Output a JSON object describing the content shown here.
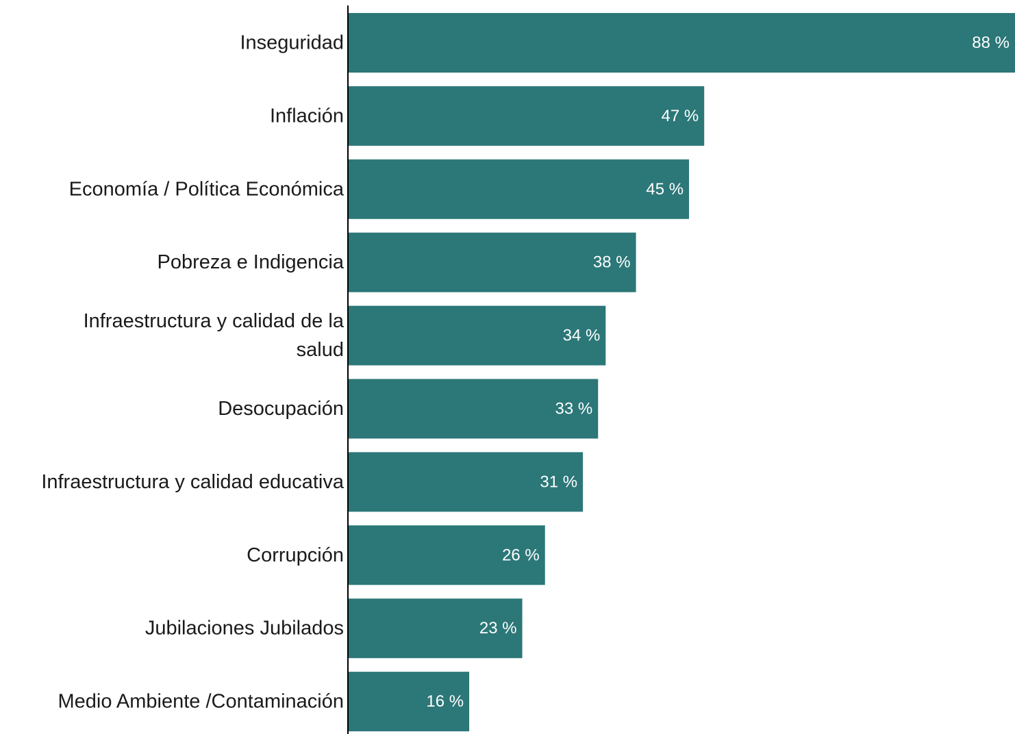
{
  "colors": {
    "bar": "#2c7778",
    "axis": "#000000",
    "label": "#1a1a1a",
    "value_label": "#ffffff"
  },
  "chart_data": {
    "type": "bar",
    "orientation": "horizontal",
    "title": "",
    "xlabel": "",
    "ylabel": "",
    "grid": false,
    "legend": "none",
    "xlim": [
      0,
      88
    ],
    "categories": [
      "Inseguridad",
      "Inflación",
      "Economía / Política Económica",
      "Pobreza e Indigencia",
      "Infraestructura y calidad de la salud",
      "Desocupación",
      "Infraestructura y calidad educativa",
      "Corrupción",
      "Jubilaciones Jubilados",
      "Medio Ambiente /Contaminación"
    ],
    "category_label_lines": [
      [
        "Inseguridad"
      ],
      [
        "Inflación"
      ],
      [
        "Economía / Política Económica"
      ],
      [
        "Pobreza e Indigencia"
      ],
      [
        "Infraestructura y calidad de la",
        "salud"
      ],
      [
        "Desocupación"
      ],
      [
        "Infraestructura y calidad educativa"
      ],
      [
        "Corrupción"
      ],
      [
        "Jubilaciones Jubilados"
      ],
      [
        "Medio Ambiente /Contaminación"
      ]
    ],
    "values": [
      88,
      47,
      45,
      38,
      34,
      33,
      31,
      26,
      23,
      16
    ],
    "value_labels": [
      "88 %",
      "47 %",
      "45 %",
      "38 %",
      "34 %",
      "33 %",
      "31 %",
      "26 %",
      "23 %",
      "16 %"
    ]
  }
}
